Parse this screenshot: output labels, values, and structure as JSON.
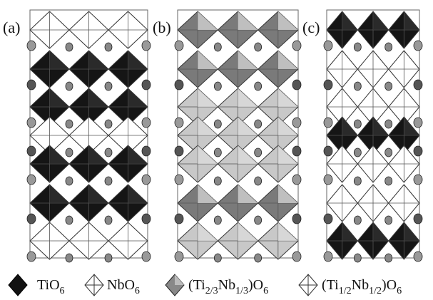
{
  "panels": [
    {
      "label": "(a)"
    },
    {
      "label": "(b)"
    },
    {
      "label": "(c)"
    }
  ],
  "legend": [
    {
      "parts": [
        {
          "text": "TiO"
        },
        {
          "text": "6",
          "sub": true
        }
      ]
    },
    {
      "parts": [
        {
          "text": "NbO"
        },
        {
          "text": "6",
          "sub": true
        }
      ]
    },
    {
      "parts": [
        {
          "text": "(Ti"
        },
        {
          "text": "2/3",
          "sub": true
        },
        {
          "text": "Nb"
        },
        {
          "text": "1/3",
          "sub": true
        },
        {
          "text": ")O"
        },
        {
          "text": "6",
          "sub": true
        }
      ]
    },
    {
      "parts": [
        {
          "text": "(Ti"
        },
        {
          "text": "1/2",
          "sub": true
        },
        {
          "text": "Nb"
        },
        {
          "text": "1/2",
          "sub": true
        },
        {
          "text": ")O"
        },
        {
          "text": "6",
          "sub": true
        }
      ]
    }
  ]
}
